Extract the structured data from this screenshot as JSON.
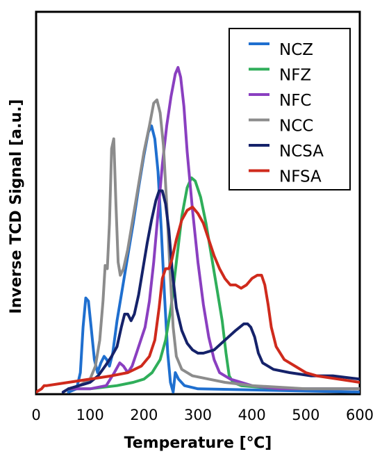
{
  "chart_data": {
    "type": "line",
    "title": "",
    "xlabel": "Temperature [℃]",
    "ylabel": "Inverse TCD Signal [a.u.]",
    "xlim": [
      0,
      600
    ],
    "ylim": [
      0,
      100
    ],
    "x_ticks": [
      0,
      100,
      200,
      300,
      400,
      500,
      600
    ],
    "x_tick_labels": [
      "0",
      "100",
      "200",
      "300",
      "400",
      "500",
      "600"
    ],
    "y_ticks_shown": false,
    "grid": false,
    "legend_position": "top-right",
    "series": [
      {
        "name": "NCZ",
        "color": "#1f6fcf",
        "points": [
          [
            60,
            0
          ],
          [
            75,
            1
          ],
          [
            82,
            6
          ],
          [
            87,
            20
          ],
          [
            92,
            29
          ],
          [
            97,
            28
          ],
          [
            102,
            20
          ],
          [
            108,
            10
          ],
          [
            114,
            6
          ],
          [
            120,
            9
          ],
          [
            126,
            11
          ],
          [
            131,
            10
          ],
          [
            136,
            8
          ],
          [
            142,
            12
          ],
          [
            150,
            22
          ],
          [
            160,
            32
          ],
          [
            170,
            42
          ],
          [
            180,
            52
          ],
          [
            190,
            63
          ],
          [
            200,
            73
          ],
          [
            208,
            80
          ],
          [
            214,
            82
          ],
          [
            220,
            78
          ],
          [
            226,
            68
          ],
          [
            232,
            50
          ],
          [
            238,
            30
          ],
          [
            244,
            12
          ],
          [
            249,
            3
          ],
          [
            254,
            0
          ],
          [
            258,
            6
          ],
          [
            264,
            4
          ],
          [
            275,
            2
          ],
          [
            300,
            1
          ],
          [
            600,
            0
          ]
        ]
      },
      {
        "name": "NFZ",
        "color": "#2fae5a",
        "points": [
          [
            60,
            1
          ],
          [
            100,
            1
          ],
          [
            150,
            2
          ],
          [
            180,
            3
          ],
          [
            200,
            4
          ],
          [
            215,
            6
          ],
          [
            230,
            10
          ],
          [
            240,
            16
          ],
          [
            250,
            26
          ],
          [
            260,
            40
          ],
          [
            270,
            54
          ],
          [
            280,
            63
          ],
          [
            288,
            66
          ],
          [
            295,
            65
          ],
          [
            305,
            60
          ],
          [
            315,
            52
          ],
          [
            325,
            42
          ],
          [
            335,
            32
          ],
          [
            345,
            22
          ],
          [
            352,
            12
          ],
          [
            358,
            5
          ],
          [
            365,
            3
          ],
          [
            380,
            2
          ],
          [
            450,
            1
          ],
          [
            600,
            1
          ]
        ]
      },
      {
        "name": "NFC",
        "color": "#8a3fc0",
        "points": [
          [
            60,
            1
          ],
          [
            100,
            1
          ],
          [
            130,
            2
          ],
          [
            145,
            6
          ],
          [
            155,
            9
          ],
          [
            162,
            8
          ],
          [
            170,
            6
          ],
          [
            178,
            8
          ],
          [
            186,
            12
          ],
          [
            194,
            16
          ],
          [
            202,
            20
          ],
          [
            210,
            28
          ],
          [
            218,
            40
          ],
          [
            226,
            55
          ],
          [
            234,
            70
          ],
          [
            242,
            82
          ],
          [
            250,
            91
          ],
          [
            258,
            98
          ],
          [
            263,
            100
          ],
          [
            268,
            97
          ],
          [
            274,
            88
          ],
          [
            280,
            74
          ],
          [
            290,
            56
          ],
          [
            300,
            40
          ],
          [
            310,
            27
          ],
          [
            320,
            17
          ],
          [
            330,
            10
          ],
          [
            340,
            6
          ],
          [
            360,
            4
          ],
          [
            400,
            2
          ],
          [
            450,
            1
          ],
          [
            600,
            1
          ]
        ]
      },
      {
        "name": "NCC",
        "color": "#8c8c8c",
        "points": [
          [
            60,
            1
          ],
          [
            80,
            2
          ],
          [
            100,
            4
          ],
          [
            110,
            8
          ],
          [
            118,
            16
          ],
          [
            124,
            28
          ],
          [
            128,
            39
          ],
          [
            132,
            38
          ],
          [
            136,
            52
          ],
          [
            140,
            75
          ],
          [
            144,
            78
          ],
          [
            148,
            58
          ],
          [
            152,
            40
          ],
          [
            156,
            36
          ],
          [
            162,
            38
          ],
          [
            170,
            44
          ],
          [
            180,
            54
          ],
          [
            190,
            64
          ],
          [
            200,
            74
          ],
          [
            210,
            82
          ],
          [
            218,
            89
          ],
          [
            224,
            90
          ],
          [
            230,
            86
          ],
          [
            236,
            76
          ],
          [
            242,
            58
          ],
          [
            248,
            38
          ],
          [
            254,
            20
          ],
          [
            260,
            11
          ],
          [
            270,
            7
          ],
          [
            290,
            5
          ],
          [
            320,
            4
          ],
          [
            350,
            3
          ],
          [
            400,
            2
          ],
          [
            500,
            1
          ],
          [
            600,
            1
          ]
        ]
      },
      {
        "name": "NCSA",
        "color": "#15226a",
        "points": [
          [
            50,
            0
          ],
          [
            60,
            1
          ],
          [
            80,
            2
          ],
          [
            100,
            3
          ],
          [
            115,
            5
          ],
          [
            128,
            8
          ],
          [
            140,
            11
          ],
          [
            150,
            14
          ],
          [
            158,
            20
          ],
          [
            164,
            24
          ],
          [
            170,
            24
          ],
          [
            176,
            22
          ],
          [
            182,
            24
          ],
          [
            190,
            30
          ],
          [
            198,
            38
          ],
          [
            206,
            46
          ],
          [
            214,
            53
          ],
          [
            222,
            59
          ],
          [
            228,
            62
          ],
          [
            234,
            62
          ],
          [
            240,
            58
          ],
          [
            246,
            50
          ],
          [
            252,
            38
          ],
          [
            260,
            26
          ],
          [
            270,
            19
          ],
          [
            280,
            15
          ],
          [
            290,
            13
          ],
          [
            300,
            12
          ],
          [
            310,
            12
          ],
          [
            330,
            13
          ],
          [
            350,
            16
          ],
          [
            370,
            19
          ],
          [
            385,
            21
          ],
          [
            392,
            21
          ],
          [
            398,
            20
          ],
          [
            405,
            17
          ],
          [
            412,
            12
          ],
          [
            420,
            9
          ],
          [
            440,
            7
          ],
          [
            470,
            6
          ],
          [
            510,
            5
          ],
          [
            550,
            5
          ],
          [
            600,
            4
          ]
        ]
      },
      {
        "name": "NFSA",
        "color": "#cf2a1c",
        "points": [
          [
            0,
            0
          ],
          [
            10,
            1
          ],
          [
            15,
            2
          ],
          [
            20,
            2
          ],
          [
            60,
            3
          ],
          [
            100,
            4
          ],
          [
            140,
            5
          ],
          [
            170,
            6
          ],
          [
            195,
            8
          ],
          [
            210,
            11
          ],
          [
            220,
            16
          ],
          [
            228,
            26
          ],
          [
            234,
            35
          ],
          [
            240,
            38
          ],
          [
            246,
            38
          ],
          [
            252,
            41
          ],
          [
            260,
            47
          ],
          [
            270,
            53
          ],
          [
            280,
            56
          ],
          [
            290,
            57
          ],
          [
            300,
            55
          ],
          [
            310,
            52
          ],
          [
            320,
            47
          ],
          [
            330,
            42
          ],
          [
            340,
            38
          ],
          [
            350,
            35
          ],
          [
            360,
            33
          ],
          [
            370,
            33
          ],
          [
            380,
            32
          ],
          [
            390,
            33
          ],
          [
            400,
            35
          ],
          [
            410,
            36
          ],
          [
            418,
            36
          ],
          [
            424,
            33
          ],
          [
            430,
            27
          ],
          [
            436,
            20
          ],
          [
            445,
            14
          ],
          [
            460,
            10
          ],
          [
            480,
            8
          ],
          [
            500,
            6
          ],
          [
            520,
            5
          ],
          [
            560,
            4
          ],
          [
            600,
            3
          ]
        ]
      }
    ]
  }
}
